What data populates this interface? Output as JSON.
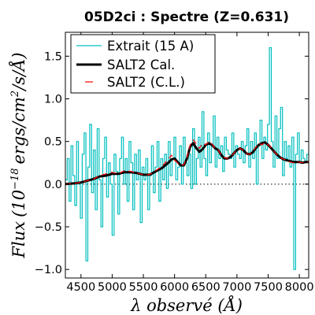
{
  "chart_data": {
    "type": "line",
    "title": "05D2ci : Spectre (Z=0.631)",
    "xlabel": "λ observé (Å)",
    "ylabel": "Flux (10^-18 ergs/cm^2/s/Å)",
    "ylabel_parts": {
      "name": "Flux",
      "base": "(10",
      "exp": "−18",
      "units": "ergs/cm",
      "units_exp": "2",
      "units_tail": "/s/Å)"
    },
    "xlim": [
      4250,
      8150
    ],
    "ylim": [
      -1.1,
      1.78
    ],
    "xticks": [
      4500,
      5000,
      5500,
      6000,
      6500,
      7000,
      7500,
      8000
    ],
    "xtick_labels": [
      "4500",
      "5000",
      "5500",
      "6000",
      "6500",
      "7000",
      "7500",
      "8000"
    ],
    "yticks": [
      -1.0,
      -0.5,
      0.0,
      0.5,
      1.0,
      1.5
    ],
    "ytick_labels": [
      "−1.0",
      "−0.5",
      "0.0",
      "0.5",
      "1.0",
      "1.5"
    ],
    "zero_line": {
      "y": 0.0,
      "style": "dotted"
    },
    "legend": {
      "placement": "upper-left"
    },
    "series": [
      {
        "name": "Extrait (15 A)",
        "color": "#00bfbf",
        "style": "steps",
        "x": [
          4250,
          4280,
          4310,
          4340,
          4370,
          4400,
          4430,
          4460,
          4490,
          4520,
          4550,
          4580,
          4610,
          4640,
          4670,
          4700,
          4730,
          4760,
          4790,
          4820,
          4850,
          4880,
          4910,
          4940,
          4970,
          5000,
          5030,
          5060,
          5090,
          5120,
          5150,
          5180,
          5210,
          5240,
          5270,
          5300,
          5330,
          5360,
          5390,
          5420,
          5450,
          5480,
          5510,
          5540,
          5570,
          5600,
          5630,
          5660,
          5690,
          5720,
          5750,
          5780,
          5810,
          5840,
          5870,
          5900,
          5930,
          5960,
          5990,
          6020,
          6050,
          6080,
          6110,
          6140,
          6170,
          6200,
          6230,
          6260,
          6290,
          6320,
          6350,
          6380,
          6410,
          6440,
          6470,
          6500,
          6530,
          6560,
          6590,
          6620,
          6650,
          6680,
          6710,
          6740,
          6770,
          6800,
          6830,
          6860,
          6890,
          6920,
          6950,
          6980,
          7010,
          7040,
          7070,
          7100,
          7130,
          7160,
          7190,
          7220,
          7250,
          7280,
          7310,
          7340,
          7370,
          7400,
          7430,
          7460,
          7490,
          7520,
          7550,
          7580,
          7610,
          7640,
          7670,
          7700,
          7730,
          7760,
          7790,
          7820,
          7850,
          7880,
          7910,
          7940,
          7970,
          8000,
          8030,
          8060,
          8090,
          8120,
          8150
        ],
        "y": [
          0.05,
          0.3,
          -0.2,
          0.45,
          0.1,
          -0.25,
          0.5,
          0.0,
          -0.4,
          0.35,
          0.6,
          -0.9,
          0.2,
          0.7,
          -0.1,
          0.4,
          -0.3,
          0.65,
          0.05,
          -0.5,
          0.3,
          0.55,
          -0.15,
          0.25,
          0.0,
          -0.6,
          0.35,
          0.15,
          -0.35,
          0.3,
          0.55,
          0.0,
          0.3,
          -0.2,
          0.5,
          0.25,
          -0.3,
          0.35,
          0.05,
          0.4,
          -0.45,
          0.2,
          0.05,
          0.3,
          -0.3,
          0.1,
          0.45,
          -0.1,
          0.2,
          0.5,
          -0.2,
          0.3,
          0.05,
          0.35,
          -0.05,
          0.5,
          0.1,
          0.3,
          0.55,
          0.05,
          0.2,
          0.45,
          0.0,
          0.55,
          0.25,
          0.1,
          0.35,
          -0.05,
          0.65,
          0.0,
          0.3,
          0.55,
          0.2,
          0.85,
          0.3,
          0.1,
          0.6,
          0.25,
          0.45,
          0.8,
          0.2,
          0.55,
          0.3,
          0.45,
          0.15,
          0.55,
          0.4,
          0.35,
          0.3,
          0.6,
          0.2,
          0.45,
          0.35,
          0.3,
          0.5,
          0.25,
          0.45,
          0.65,
          0.2,
          0.5,
          0.3,
          0.6,
          0.0,
          0.45,
          0.75,
          0.3,
          0.55,
          0.4,
          0.7,
          1.6,
          0.5,
          0.2,
          0.8,
          0.3,
          0.65,
          0.9,
          0.1,
          0.5,
          0.3,
          0.45,
          0.2,
          0.55,
          -1.0,
          0.35,
          0.6,
          0.25,
          0.4,
          0.3,
          0.25,
          0.35,
          0.3
        ]
      },
      {
        "name": "SALT2 Cal.",
        "color": "#000000",
        "style": "thick",
        "x": [
          4250,
          4400,
          4500,
          4600,
          4700,
          4800,
          4900,
          5000,
          5100,
          5200,
          5300,
          5400,
          5500,
          5600,
          5700,
          5800,
          5900,
          5950,
          6000,
          6050,
          6100,
          6150,
          6200,
          6250,
          6300,
          6350,
          6400,
          6450,
          6500,
          6550,
          6600,
          6650,
          6700,
          6750,
          6800,
          6850,
          6900,
          6950,
          7000,
          7050,
          7100,
          7150,
          7200,
          7250,
          7300,
          7350,
          7400,
          7450,
          7500,
          7550,
          7600,
          7650,
          7700,
          7750,
          7800,
          7850,
          7900,
          7950,
          8000,
          8050,
          8100,
          8150
        ],
        "y": [
          0.0,
          0.01,
          0.02,
          0.04,
          0.06,
          0.09,
          0.1,
          0.12,
          0.12,
          0.14,
          0.14,
          0.13,
          0.11,
          0.11,
          0.15,
          0.19,
          0.25,
          0.29,
          0.3,
          0.26,
          0.22,
          0.22,
          0.3,
          0.44,
          0.48,
          0.42,
          0.38,
          0.41,
          0.46,
          0.48,
          0.46,
          0.42,
          0.4,
          0.34,
          0.3,
          0.3,
          0.32,
          0.36,
          0.4,
          0.42,
          0.4,
          0.36,
          0.35,
          0.37,
          0.42,
          0.46,
          0.48,
          0.49,
          0.46,
          0.42,
          0.38,
          0.34,
          0.31,
          0.29,
          0.28,
          0.27,
          0.26,
          0.26,
          0.26,
          0.25,
          0.26,
          0.26
        ]
      },
      {
        "name": "SALT2 (C.L.)",
        "color": "#ff0000",
        "style": "dashed",
        "x": [
          4250,
          4400,
          4500,
          4600,
          4700,
          4800,
          4900,
          5000,
          5100,
          5200,
          5300,
          5400,
          5500,
          5600,
          5700,
          5800,
          5900,
          5950,
          6000,
          6050,
          6100,
          6150,
          6200,
          6250,
          6300,
          6350,
          6400,
          6450,
          6500,
          6550,
          6600,
          6650,
          6700,
          6750,
          6800,
          6850,
          6900,
          6950,
          7000,
          7050,
          7100,
          7150,
          7200,
          7250,
          7300,
          7350,
          7400,
          7450,
          7500,
          7550,
          7600,
          7650,
          7700,
          7750,
          7800,
          7850,
          7900,
          7950,
          8000,
          8050,
          8100,
          8150
        ],
        "y": [
          0.0,
          0.01,
          0.02,
          0.04,
          0.06,
          0.1,
          0.12,
          0.14,
          0.12,
          0.16,
          0.15,
          0.13,
          0.11,
          0.11,
          0.16,
          0.21,
          0.29,
          0.34,
          0.28,
          0.25,
          0.22,
          0.23,
          0.31,
          0.46,
          0.52,
          0.47,
          0.42,
          0.48,
          0.46,
          0.5,
          0.47,
          0.42,
          0.4,
          0.34,
          0.31,
          0.3,
          0.33,
          0.36,
          0.4,
          0.42,
          0.4,
          0.36,
          0.35,
          0.38,
          0.43,
          0.48,
          0.46,
          0.49,
          0.46,
          0.43,
          0.38,
          0.34,
          0.31,
          0.29,
          0.28,
          0.26,
          0.25,
          0.26,
          0.26,
          0.25,
          0.26,
          0.26
        ]
      }
    ]
  }
}
